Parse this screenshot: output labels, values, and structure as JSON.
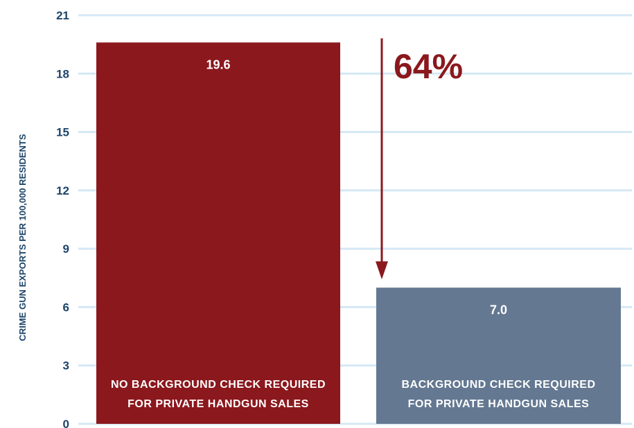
{
  "chart_data": {
    "type": "bar",
    "title": "",
    "xlabel": "",
    "ylabel": "CRIME GUN EXPORTS PER 100,000 RESIDENTS",
    "ylim": [
      0,
      21
    ],
    "yticks": [
      0,
      3,
      6,
      9,
      12,
      15,
      18,
      21
    ],
    "grid": true,
    "categories": [
      [
        "NO BACKGROUND CHECK REQUIRED",
        "FOR PRIVATE HANDGUN SALES"
      ],
      [
        "BACKGROUND CHECK REQUIRED",
        "FOR PRIVATE HANDGUN SALES"
      ]
    ],
    "values": [
      19.6,
      7.0
    ],
    "value_labels": [
      "19.6",
      "7.0"
    ],
    "colors": [
      "#8b181d",
      "#647891"
    ],
    "annotation": {
      "text": "64%",
      "color": "#8b181d",
      "from_value": 19.6,
      "to_value": 7.0
    },
    "grid_color": "#d4e8f5",
    "axis_text_color": "#1d4469"
  }
}
